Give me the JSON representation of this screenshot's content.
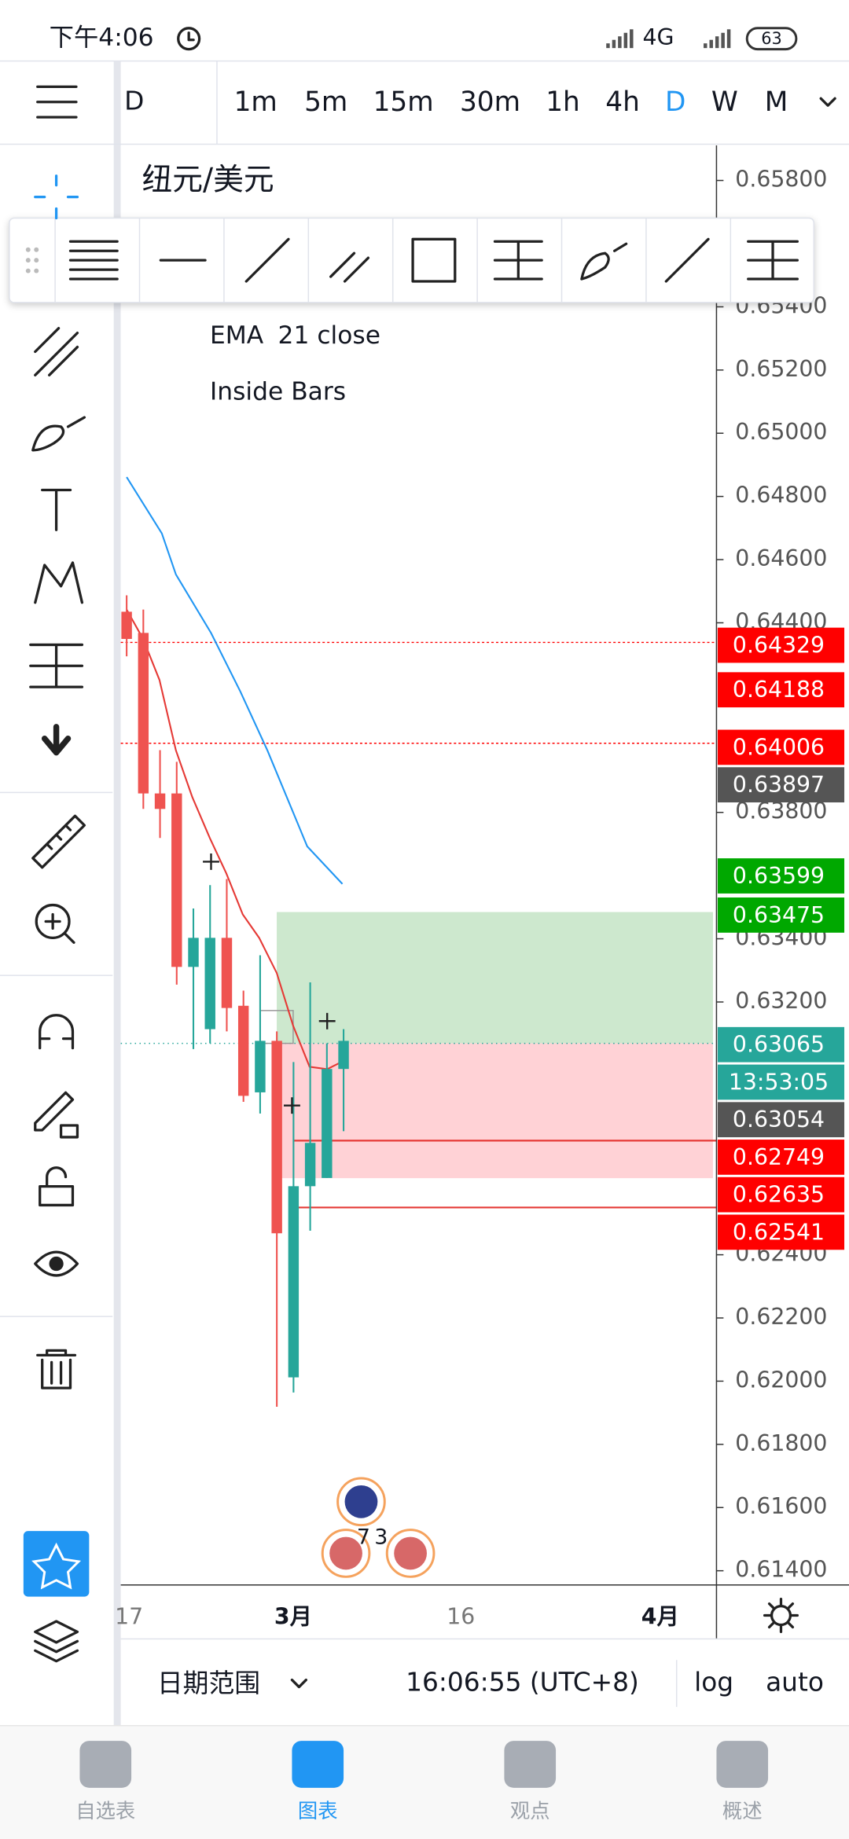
{
  "status_bar": {
    "time": "下午4:06",
    "network": "4G",
    "battery": "63"
  },
  "timeframes": {
    "partial": "D",
    "items": [
      "1m",
      "5m",
      "15m",
      "30m",
      "1h",
      "4h",
      "D",
      "W",
      "M"
    ],
    "active_index": 6,
    "active_color": "#2196f3"
  },
  "chart": {
    "symbol": "纽元/美元",
    "indicators": [
      {
        "name": "EMA",
        "params": "21 close"
      },
      {
        "name": "Inside Bars"
      }
    ],
    "ylim": [
      0.61355,
      0.65911
    ],
    "yticks": [
      {
        "value": 0.658,
        "label": "0.65800"
      },
      {
        "value": 0.654,
        "label": "0.65400"
      },
      {
        "value": 0.652,
        "label": "0.65200"
      },
      {
        "value": 0.65,
        "label": "0.65000"
      },
      {
        "value": 0.648,
        "label": "0.64800"
      },
      {
        "value": 0.646,
        "label": "0.64600"
      },
      {
        "value": 0.644,
        "label": "0.64400"
      },
      {
        "value": 0.638,
        "label": "0.63800"
      },
      {
        "value": 0.634,
        "label": "0.63400"
      },
      {
        "value": 0.632,
        "label": "0.63200"
      },
      {
        "value": 0.624,
        "label": "0.62400"
      },
      {
        "value": 0.622,
        "label": "0.62200"
      },
      {
        "value": 0.62,
        "label": "0.62000"
      },
      {
        "value": 0.618,
        "label": "0.61800"
      },
      {
        "value": 0.616,
        "label": "0.61600"
      },
      {
        "value": 0.614,
        "label": "0.61400"
      }
    ],
    "up_color": "#26a69a",
    "down_color": "#ef5350",
    "candles": [
      {
        "o": 0.64435,
        "h": 0.64487,
        "l": 0.64294,
        "c": 0.64349
      },
      {
        "o": 0.64368,
        "h": 0.64442,
        "l": 0.63811,
        "c": 0.6386
      },
      {
        "o": 0.6386,
        "h": 0.63997,
        "l": 0.63719,
        "c": 0.63811
      },
      {
        "o": 0.6386,
        "h": 0.6396,
        "l": 0.63255,
        "c": 0.63311
      },
      {
        "o": 0.63311,
        "h": 0.63496,
        "l": 0.63051,
        "c": 0.63403
      },
      {
        "o": 0.63114,
        "h": 0.6357,
        "l": 0.63069,
        "c": 0.63403
      },
      {
        "o": 0.63403,
        "h": 0.63589,
        "l": 0.63107,
        "c": 0.63181
      },
      {
        "o": 0.63188,
        "h": 0.63236,
        "l": 0.62884,
        "c": 0.62903
      },
      {
        "o": 0.62914,
        "h": 0.63348,
        "l": 0.62847,
        "c": 0.63077
      },
      {
        "o": 0.63077,
        "h": 0.63107,
        "l": 0.61919,
        "c": 0.62468
      },
      {
        "o": 0.62012,
        "h": 0.6301,
        "l": 0.61964,
        "c": 0.62617
      },
      {
        "o": 0.62617,
        "h": 0.63262,
        "l": 0.62476,
        "c": 0.62754
      },
      {
        "o": 0.62643,
        "h": 0.63069,
        "l": 0.62643,
        "c": 0.62988
      },
      {
        "o": 0.62988,
        "h": 0.63114,
        "l": 0.62791,
        "c": 0.63077
      }
    ],
    "price_tags": [
      {
        "value": 0.64329,
        "label": "0.64329",
        "color": "#ff0000"
      },
      {
        "value": 0.64188,
        "label": "0.64188",
        "color": "#ff0000"
      },
      {
        "value": 0.64006,
        "label": "0.64006",
        "color": "#ff0000"
      },
      {
        "value": 0.63897,
        "label": "0.63897",
        "color": "#555555"
      },
      {
        "value": 0.63599,
        "label": "0.63599",
        "color": "#00a800"
      },
      {
        "value": 0.63475,
        "label": "0.63475",
        "color": "#00a800"
      },
      {
        "value": 0.63065,
        "label": "0.63065",
        "color": "#26a69a"
      },
      {
        "label": "13:53:05",
        "color": "#26a69a"
      },
      {
        "value": 0.63054,
        "label": "0.63054",
        "color": "#555555"
      },
      {
        "value": 0.62749,
        "label": "0.62749",
        "color": "#ff0000"
      },
      {
        "value": 0.62635,
        "label": "0.62635",
        "color": "#ff0000"
      },
      {
        "value": 0.62541,
        "label": "0.62541",
        "color": "#ff0000"
      }
    ],
    "x_labels": [
      "17",
      "3月",
      "16",
      "4月"
    ],
    "events": {
      "count_a": "7",
      "count_b": "3"
    }
  },
  "bottom_bar": {
    "date_range": "日期范围",
    "clock": "16:06:55 (UTC+8)",
    "log": "log",
    "auto": "auto"
  },
  "nav": {
    "items": [
      "自选表",
      "图表",
      "观点",
      "概述"
    ],
    "active_index": 1
  }
}
